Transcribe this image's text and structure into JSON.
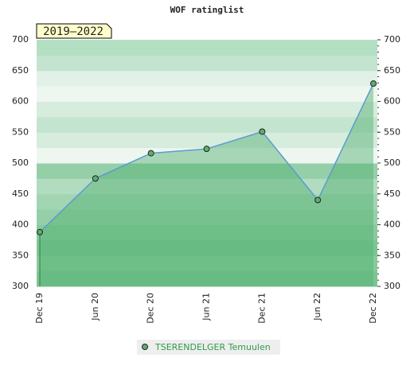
{
  "chart_data": {
    "type": "area",
    "title": "WOF ratinglist",
    "annotation": "2019–2022",
    "categories": [
      "Dec 19",
      "Jun 20",
      "Dec 20",
      "Jun 21",
      "Dec 21",
      "Jun 22",
      "Dec 22"
    ],
    "series": [
      {
        "name": "TSERENDELGER Temuulen",
        "color": "#5b9bd5",
        "values": [
          388,
          475,
          516,
          523,
          551,
          440,
          629
        ]
      }
    ],
    "ylim": [
      300,
      700
    ],
    "yticks": [
      300,
      350,
      400,
      450,
      500,
      550,
      600,
      650,
      700
    ]
  }
}
